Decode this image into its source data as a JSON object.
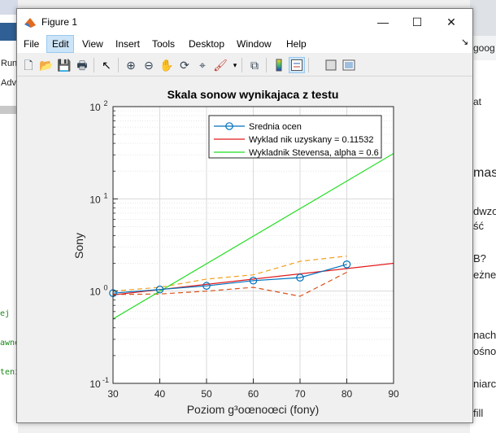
{
  "background_left": {
    "labels": [
      "Run",
      "Adv"
    ],
    "code_lines": [
      "ej",
      "awne",
      "tenit"
    ]
  },
  "background_right": {
    "texts": [
      "goog",
      "at",
      "mas",
      "dwzo",
      "ść",
      "B?",
      "eżne",
      "nach",
      "ośno",
      "niarc",
      "fill"
    ]
  },
  "window": {
    "title": "Figure 1",
    "minimize": "—",
    "maximize": "☐",
    "close": "✕"
  },
  "menus": [
    "File",
    "Edit",
    "View",
    "Insert",
    "Tools",
    "Desktop",
    "Window",
    "Help"
  ],
  "toolbar": {
    "icons": [
      "new-figure-icon",
      "open-file-icon",
      "save-icon",
      "print-icon",
      "pointer-icon",
      "zoom-in-icon",
      "zoom-out-icon",
      "pan-icon",
      "rotate-icon",
      "data-cursor-icon",
      "brush-icon",
      "link-plot-icon",
      "colorbar-icon",
      "legend-icon",
      "hide-plot-tools-icon",
      "show-plot-tools-icon"
    ]
  },
  "chart_data": {
    "type": "line",
    "title": "Skala sonow wynikajaca z testu",
    "xlabel": "Poziom g³oœnoœci (fony)",
    "ylabel": "Sony",
    "xlim": [
      30,
      90
    ],
    "ylim": [
      0.1,
      100
    ],
    "yscale": "log",
    "xticks": [
      "30",
      "40",
      "50",
      "60",
      "70",
      "80",
      "90"
    ],
    "yticks": [
      {
        "base": "10",
        "exp": "-1",
        "value": 0.1
      },
      {
        "base": "10",
        "exp": "0",
        "value": 1
      },
      {
        "base": "10",
        "exp": "1",
        "value": 10
      },
      {
        "base": "10",
        "exp": "2",
        "value": 100
      }
    ],
    "grid": true,
    "legend_position": "top-right",
    "series": [
      {
        "name": "Srednia ocen",
        "color": "#0072bd",
        "style": "solid-marker-circle",
        "x": [
          30,
          40,
          50,
          60,
          70,
          80
        ],
        "y": [
          0.95,
          1.04,
          1.14,
          1.3,
          1.4,
          1.95
        ]
      },
      {
        "name": "Wyklad nik uzyskany = 0.11532",
        "color": "#e31a1c",
        "style": "solid",
        "x": [
          30,
          90
        ],
        "y": [
          0.91,
          2.0
        ]
      },
      {
        "name": "Wykladnik Stevensa, alpha = 0.6",
        "color": "#22dd22",
        "style": "solid",
        "x": [
          30,
          90
        ],
        "y": [
          0.5,
          31
        ]
      },
      {
        "color": "#f0a020",
        "style": "dashed",
        "x": [
          30,
          40,
          50,
          60,
          70,
          80
        ],
        "y": [
          1.0,
          1.1,
          1.35,
          1.5,
          2.1,
          2.4
        ]
      },
      {
        "color": "#d95319",
        "style": "dashed",
        "x": [
          30,
          40,
          50,
          60,
          70,
          80
        ],
        "y": [
          0.92,
          0.93,
          1.0,
          1.1,
          0.88,
          1.6
        ]
      }
    ]
  }
}
